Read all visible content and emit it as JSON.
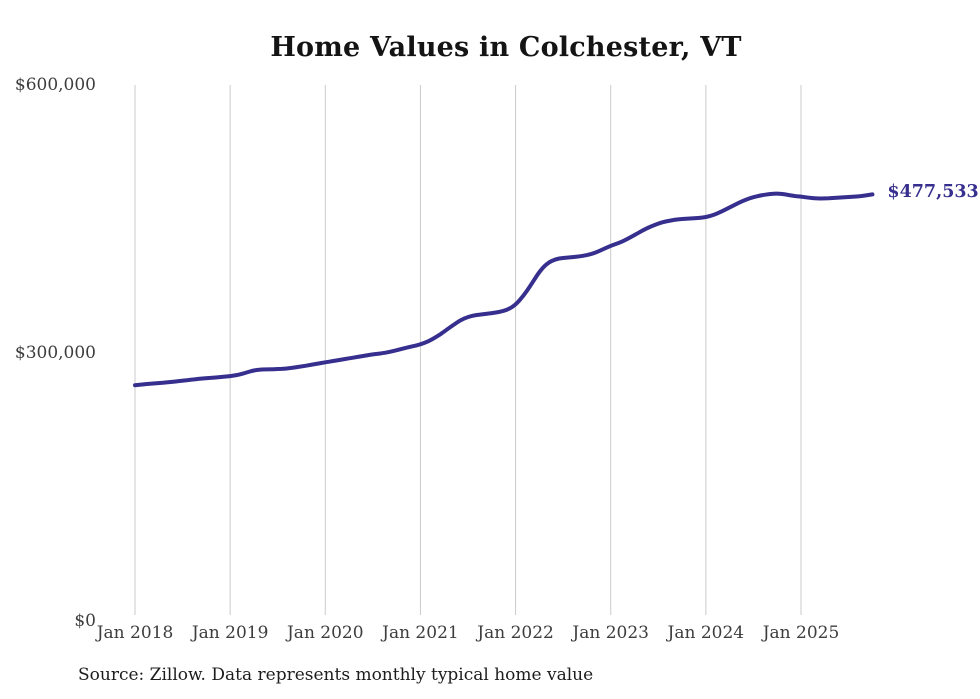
{
  "page": {
    "title": "Home Values in Colchester, VT",
    "source_note": "Source: Zillow. Data represents monthly typical home value"
  },
  "chart_data": {
    "type": "line",
    "title": "Home Values in Colchester, VT",
    "x_unit": "month",
    "x_start": "Jan 2018",
    "x_end": "Oct 2025",
    "ylim": [
      0,
      600000
    ],
    "grid": "vertical-only",
    "legend": "none",
    "line_color": "#372f8e",
    "gridline_color": "#cbcbcb",
    "tick_label_color": "#3d3d3d",
    "end_label": "$477,533",
    "end_value": 477533,
    "y_ticks": [
      {
        "label": "$600,000",
        "value": 600000
      },
      {
        "label": "$300,000",
        "value": 300000
      },
      {
        "label": "$0",
        "value": 0
      }
    ],
    "x_ticks": [
      {
        "label": "Jan 2018",
        "month_index": 0
      },
      {
        "label": "Jan 2019",
        "month_index": 12
      },
      {
        "label": "Jan 2020",
        "month_index": 24
      },
      {
        "label": "Jan 2021",
        "month_index": 36
      },
      {
        "label": "Jan 2022",
        "month_index": 48
      },
      {
        "label": "Jan 2023",
        "month_index": 60
      },
      {
        "label": "Jan 2024",
        "month_index": 72
      },
      {
        "label": "Jan 2025",
        "month_index": 84
      }
    ],
    "series": [
      {
        "name": "Monthly typical home value",
        "start_month": "Jan 2018",
        "values": [
          264000,
          264800,
          265600,
          266300,
          267100,
          268000,
          269000,
          270000,
          271000,
          271800,
          272600,
          273300,
          274000,
          275500,
          278000,
          280500,
          281500,
          281800,
          282000,
          282500,
          283500,
          285000,
          286500,
          288000,
          289500,
          291000,
          292500,
          294000,
          295500,
          297000,
          298500,
          299500,
          301000,
          303000,
          305500,
          307500,
          309500,
          313000,
          318000,
          324000,
          330500,
          336500,
          340500,
          342500,
          343500,
          344500,
          346000,
          348500,
          354000,
          364000,
          377000,
          391000,
          400500,
          405000,
          406500,
          407000,
          408000,
          409500,
          412000,
          416000,
          420000,
          423000,
          427000,
          432000,
          437000,
          441500,
          445000,
          447500,
          449000,
          450000,
          450500,
          451000,
          452000,
          454500,
          458500,
          463000,
          467500,
          471500,
          474500,
          476500,
          478000,
          478500,
          477500,
          476000,
          475000,
          473800,
          473000,
          473000,
          473500,
          474000,
          474500,
          475200,
          476200,
          477533
        ]
      }
    ]
  }
}
